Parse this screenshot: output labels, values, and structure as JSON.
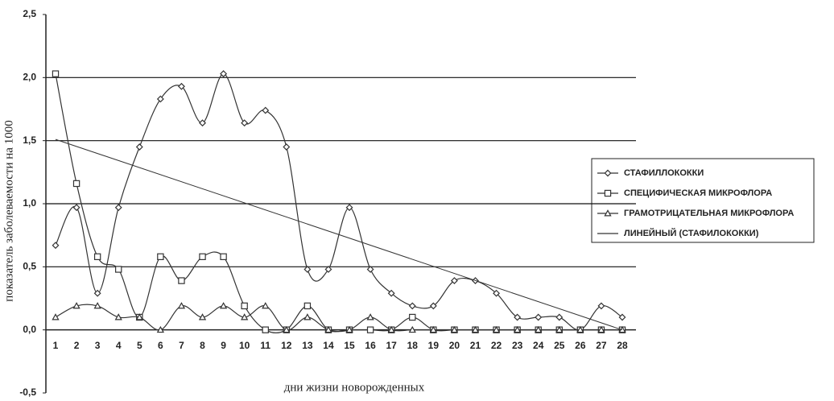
{
  "chart_data": {
    "type": "line",
    "xlabel": "дни жизни новорожденных",
    "ylabel": "показатель заболеваемости на 1000",
    "categories": [
      1,
      2,
      3,
      4,
      5,
      6,
      7,
      8,
      9,
      10,
      11,
      12,
      13,
      14,
      15,
      16,
      17,
      18,
      19,
      20,
      21,
      22,
      23,
      24,
      25,
      26,
      27,
      28
    ],
    "series": [
      {
        "name": "СТАФИЛЛОКОККИ",
        "color": "#333333",
        "marker": "diamond",
        "values": [
          0.67,
          0.97,
          0.29,
          0.97,
          1.45,
          1.83,
          1.93,
          1.64,
          2.03,
          1.64,
          1.74,
          1.45,
          0.48,
          0.48,
          0.97,
          0.48,
          0.29,
          0.19,
          0.19,
          0.39,
          0.39,
          0.29,
          0.1,
          0.1,
          0.1,
          0,
          0.19,
          0.1
        ]
      },
      {
        "name": "СПЕЦИФИЧЕСКАЯ МИКРОФЛОРА",
        "color": "#333333",
        "marker": "square",
        "values": [
          2.03,
          1.16,
          0.58,
          0.48,
          0.1,
          0.58,
          0.39,
          0.58,
          0.58,
          0.19,
          0,
          0,
          0.19,
          0,
          0,
          0,
          0,
          0.1,
          0,
          0,
          0,
          0,
          0,
          0,
          0,
          0,
          0,
          0
        ]
      },
      {
        "name": "ГРАМОТРИЦАТЕЛЬНАЯ МИКРОФЛОРА",
        "color": "#333333",
        "marker": "triangle",
        "values": [
          0.1,
          0.19,
          0.19,
          0.1,
          0.1,
          0,
          0.19,
          0.1,
          0.19,
          0.1,
          0.19,
          0,
          0.1,
          0,
          0,
          0.1,
          0,
          0,
          0,
          0,
          0,
          0,
          0,
          0,
          0,
          0,
          0,
          0
        ]
      },
      {
        "name": "ЛИНЕЙНЫЙ (СТАФИЛОКОККИ)",
        "color": "#333333",
        "marker": "none",
        "x": [
          1,
          28
        ],
        "values": [
          1.51,
          0.0
        ]
      }
    ],
    "ylim": [
      -0.5,
      2.5
    ],
    "yticks": [
      {
        "value": -0.5,
        "label": "-0,5"
      },
      {
        "value": 0,
        "label": "0,0"
      },
      {
        "value": 0.5,
        "label": "0,5"
      },
      {
        "value": 1.0,
        "label": "1,0"
      },
      {
        "value": 1.5,
        "label": "1,5"
      },
      {
        "value": 2.0,
        "label": "2,0"
      },
      {
        "value": 2.5,
        "label": "2,5"
      }
    ],
    "grid": true
  }
}
